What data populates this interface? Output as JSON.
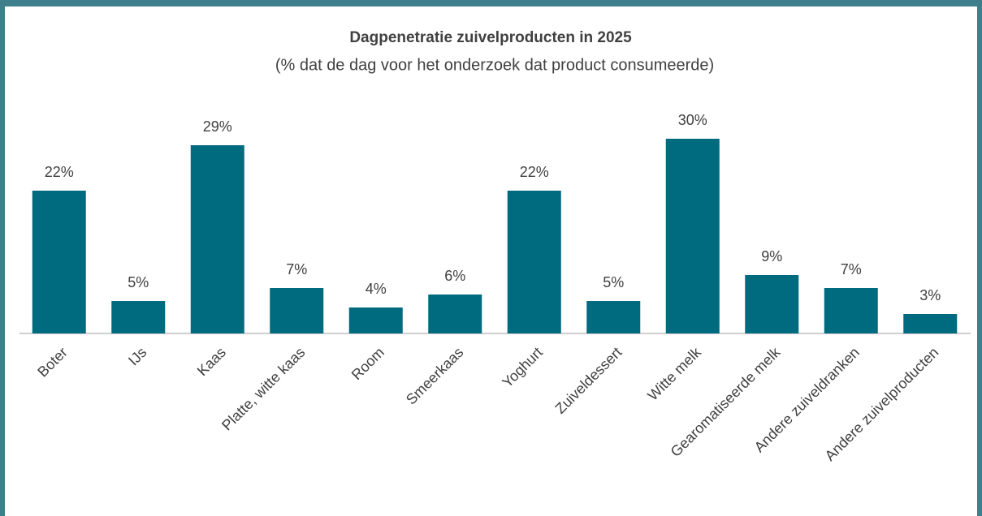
{
  "chart_data": {
    "type": "bar",
    "title": "Dagpenetratie zuivelproducten in 2025",
    "subtitle": "(% dat de dag voor het onderzoek dat product consumeerde)",
    "categories": [
      "Boter",
      "IJs",
      "Kaas",
      "Platte, witte kaas",
      "Room",
      "Smeerkaas",
      "Yoghurt",
      "Zuiveldessert",
      "Witte melk",
      "Gearomatiseerde melk",
      "Andere zuiveldranken",
      "Andere zuivelproducten"
    ],
    "values": [
      22,
      5,
      29,
      7,
      4,
      6,
      22,
      5,
      30,
      9,
      7,
      3
    ],
    "value_labels": [
      "22%",
      "5%",
      "29%",
      "7%",
      "4%",
      "6%",
      "22%",
      "5%",
      "30%",
      "9%",
      "7%",
      "3%"
    ],
    "color": "#006a7f"
  }
}
